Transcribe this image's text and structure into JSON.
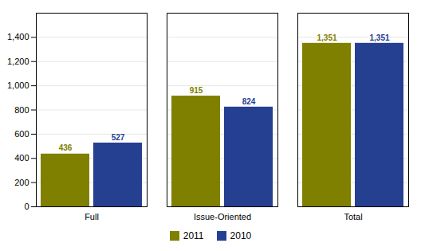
{
  "chart_data": {
    "type": "bar",
    "categories": [
      "Full",
      "Issue-Oriented",
      "Total"
    ],
    "series": [
      {
        "name": "2011",
        "color": "#808000",
        "values": [
          436,
          915,
          1351
        ],
        "value_labels": [
          "436",
          "915",
          "1,351"
        ]
      },
      {
        "name": "2010",
        "color": "#253F91",
        "values": [
          527,
          824,
          1351
        ],
        "value_labels": [
          "527",
          "824",
          "1,351"
        ]
      }
    ],
    "ylim": [
      0,
      1600
    ],
    "yticks": [
      0,
      200,
      400,
      600,
      800,
      {
        "value": 1000,
        "label": "1,000"
      },
      {
        "value": 1200,
        "label": "1,200"
      },
      {
        "value": 1400,
        "label": "1,400"
      }
    ],
    "grid": true,
    "legend": "bottom",
    "data_labels": true
  }
}
